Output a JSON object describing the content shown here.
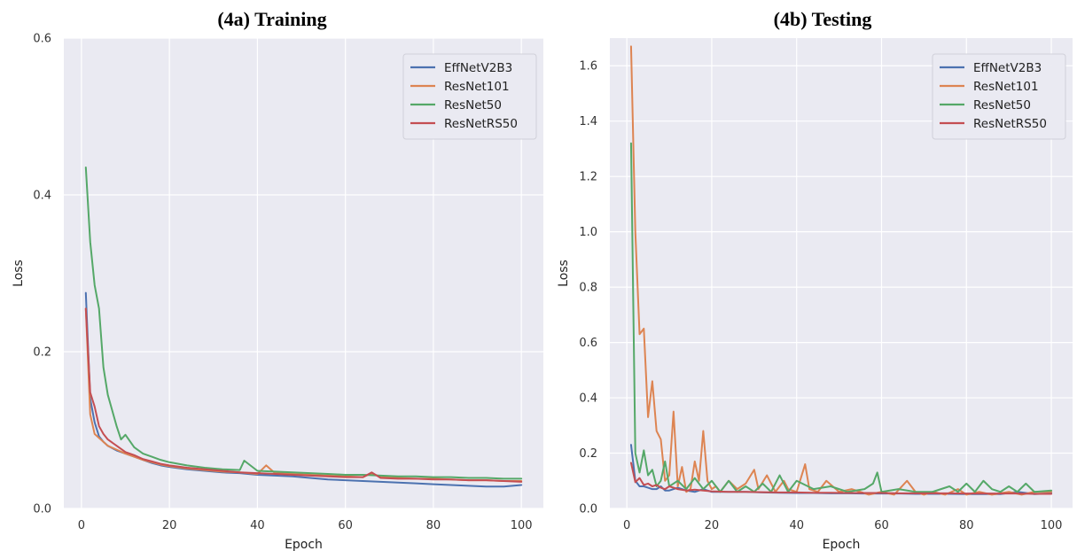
{
  "chart_data": [
    {
      "type": "line",
      "title": "(4a) Training",
      "xlabel": "Epoch",
      "ylabel": "Loss",
      "xlim": [
        -4,
        105
      ],
      "ylim": [
        0,
        0.6
      ],
      "xticks": [
        0,
        20,
        40,
        60,
        80,
        100
      ],
      "yticks": [
        0.0,
        0.2,
        0.4,
        0.6
      ],
      "xtick_labels": [
        "0",
        "20",
        "40",
        "60",
        "80",
        "100"
      ],
      "ytick_labels": [
        "0.0",
        "0.2",
        "0.4",
        "0.6"
      ],
      "grid": true,
      "legend_position": "top-right",
      "series": [
        {
          "name": "EffNetV2B3",
          "color": "#4c72b0",
          "x": [
            1,
            2,
            3,
            4,
            5,
            6,
            8,
            10,
            12,
            14,
            16,
            18,
            20,
            24,
            28,
            32,
            36,
            40,
            44,
            48,
            52,
            56,
            60,
            64,
            68,
            72,
            76,
            80,
            84,
            88,
            92,
            96,
            100
          ],
          "y": [
            0.275,
            0.14,
            0.11,
            0.092,
            0.085,
            0.08,
            0.074,
            0.07,
            0.066,
            0.062,
            0.058,
            0.055,
            0.053,
            0.05,
            0.048,
            0.046,
            0.045,
            0.043,
            0.042,
            0.041,
            0.039,
            0.037,
            0.036,
            0.035,
            0.034,
            0.033,
            0.032,
            0.031,
            0.03,
            0.029,
            0.028,
            0.028,
            0.03
          ]
        },
        {
          "name": "ResNet101",
          "color": "#dd8452",
          "x": [
            1,
            2,
            3,
            4,
            5,
            6,
            8,
            10,
            12,
            14,
            16,
            18,
            20,
            24,
            28,
            32,
            36,
            40,
            42,
            44,
            48,
            52,
            56,
            60,
            64,
            66,
            68,
            72,
            76,
            80,
            84,
            88,
            92,
            96,
            100
          ],
          "y": [
            0.255,
            0.12,
            0.095,
            0.09,
            0.085,
            0.08,
            0.075,
            0.07,
            0.066,
            0.062,
            0.059,
            0.056,
            0.054,
            0.051,
            0.049,
            0.047,
            0.046,
            0.044,
            0.055,
            0.045,
            0.044,
            0.043,
            0.042,
            0.041,
            0.04,
            0.045,
            0.04,
            0.039,
            0.038,
            0.038,
            0.037,
            0.036,
            0.036,
            0.035,
            0.035
          ]
        },
        {
          "name": "ResNet50",
          "color": "#55a868",
          "x": [
            1,
            2,
            3,
            4,
            5,
            6,
            7,
            8,
            9,
            10,
            12,
            14,
            16,
            18,
            20,
            24,
            28,
            32,
            36,
            37,
            40,
            44,
            48,
            52,
            56,
            60,
            64,
            68,
            72,
            76,
            80,
            84,
            88,
            92,
            96,
            100
          ],
          "y": [
            0.435,
            0.34,
            0.285,
            0.255,
            0.18,
            0.145,
            0.125,
            0.105,
            0.088,
            0.094,
            0.078,
            0.07,
            0.066,
            0.062,
            0.059,
            0.055,
            0.052,
            0.05,
            0.049,
            0.061,
            0.048,
            0.047,
            0.046,
            0.045,
            0.044,
            0.043,
            0.043,
            0.042,
            0.041,
            0.041,
            0.04,
            0.04,
            0.039,
            0.039,
            0.038,
            0.038
          ]
        },
        {
          "name": "ResNetRS50",
          "color": "#c44e52",
          "x": [
            1,
            2,
            3,
            4,
            5,
            6,
            8,
            10,
            12,
            14,
            16,
            18,
            20,
            24,
            28,
            32,
            36,
            40,
            44,
            48,
            52,
            56,
            60,
            64,
            66,
            68,
            72,
            76,
            80,
            84,
            88,
            92,
            96,
            100
          ],
          "y": [
            0.255,
            0.148,
            0.13,
            0.105,
            0.095,
            0.088,
            0.08,
            0.072,
            0.068,
            0.063,
            0.06,
            0.057,
            0.055,
            0.052,
            0.05,
            0.048,
            0.046,
            0.045,
            0.044,
            0.043,
            0.042,
            0.041,
            0.04,
            0.04,
            0.046,
            0.039,
            0.038,
            0.038,
            0.037,
            0.037,
            0.036,
            0.036,
            0.035,
            0.034
          ]
        }
      ]
    },
    {
      "type": "line",
      "title": "(4b) Testing",
      "xlabel": "Epoch",
      "ylabel": "Loss",
      "xlim": [
        -4,
        105
      ],
      "ylim": [
        0,
        1.7
      ],
      "xticks": [
        0,
        20,
        40,
        60,
        80,
        100
      ],
      "yticks": [
        0.0,
        0.2,
        0.4,
        0.6,
        0.8,
        1.0,
        1.2,
        1.4,
        1.6
      ],
      "xtick_labels": [
        "0",
        "20",
        "40",
        "60",
        "80",
        "100"
      ],
      "ytick_labels": [
        "0.0",
        "0.2",
        "0.4",
        "0.6",
        "0.8",
        "1.0",
        "1.2",
        "1.4",
        "1.6"
      ],
      "grid": true,
      "legend_position": "top-right",
      "series": [
        {
          "name": "EffNetV2B3",
          "color": "#4c72b0",
          "x": [
            1,
            2,
            3,
            4,
            5,
            6,
            7,
            8,
            9,
            10,
            12,
            14,
            16,
            18,
            20,
            24,
            28,
            32,
            36,
            40,
            44,
            48,
            52,
            56,
            60,
            64,
            68,
            72,
            76,
            80,
            84,
            88,
            92,
            96,
            100
          ],
          "y": [
            0.23,
            0.1,
            0.08,
            0.08,
            0.075,
            0.07,
            0.07,
            0.08,
            0.065,
            0.065,
            0.075,
            0.065,
            0.06,
            0.07,
            0.06,
            0.06,
            0.06,
            0.058,
            0.057,
            0.056,
            0.056,
            0.055,
            0.055,
            0.054,
            0.054,
            0.054,
            0.053,
            0.053,
            0.053,
            0.052,
            0.052,
            0.052,
            0.06,
            0.052,
            0.055
          ]
        },
        {
          "name": "ResNet101",
          "color": "#dd8452",
          "x": [
            1,
            2,
            3,
            4,
            5,
            6,
            7,
            8,
            9,
            10,
            11,
            12,
            13,
            14,
            15,
            16,
            17,
            18,
            19,
            20,
            21,
            22,
            24,
            26,
            28,
            30,
            31,
            33,
            35,
            37,
            38,
            40,
            42,
            43,
            45,
            47,
            50,
            53,
            55,
            57,
            60,
            63,
            66,
            68,
            70,
            72,
            75,
            78,
            80,
            83,
            86,
            90,
            93,
            96,
            100
          ],
          "y": [
            1.67,
            1.0,
            0.63,
            0.65,
            0.33,
            0.46,
            0.28,
            0.25,
            0.1,
            0.12,
            0.35,
            0.08,
            0.15,
            0.06,
            0.07,
            0.17,
            0.1,
            0.28,
            0.1,
            0.07,
            0.08,
            0.06,
            0.1,
            0.07,
            0.09,
            0.14,
            0.07,
            0.12,
            0.06,
            0.1,
            0.07,
            0.06,
            0.16,
            0.07,
            0.06,
            0.1,
            0.06,
            0.07,
            0.06,
            0.05,
            0.06,
            0.05,
            0.1,
            0.06,
            0.05,
            0.06,
            0.05,
            0.07,
            0.05,
            0.06,
            0.05,
            0.06,
            0.05,
            0.06,
            0.06
          ]
        },
        {
          "name": "ResNet50",
          "color": "#55a868",
          "x": [
            1,
            2,
            3,
            4,
            5,
            6,
            7,
            8,
            9,
            10,
            12,
            14,
            16,
            18,
            20,
            22,
            24,
            26,
            28,
            30,
            32,
            34,
            36,
            38,
            40,
            44,
            48,
            52,
            56,
            58,
            59,
            60,
            64,
            68,
            72,
            76,
            78,
            80,
            82,
            84,
            86,
            88,
            90,
            92,
            94,
            96,
            100
          ],
          "y": [
            1.32,
            0.2,
            0.13,
            0.21,
            0.12,
            0.14,
            0.08,
            0.1,
            0.17,
            0.08,
            0.1,
            0.07,
            0.11,
            0.07,
            0.1,
            0.06,
            0.1,
            0.06,
            0.08,
            0.06,
            0.09,
            0.06,
            0.12,
            0.06,
            0.1,
            0.07,
            0.08,
            0.06,
            0.07,
            0.09,
            0.13,
            0.06,
            0.07,
            0.06,
            0.06,
            0.08,
            0.06,
            0.09,
            0.06,
            0.1,
            0.07,
            0.06,
            0.08,
            0.06,
            0.09,
            0.06,
            0.065
          ]
        },
        {
          "name": "ResNetRS50",
          "color": "#c44e52",
          "x": [
            1,
            2,
            3,
            4,
            5,
            6,
            7,
            8,
            9,
            10,
            12,
            14,
            16,
            18,
            20,
            24,
            28,
            32,
            36,
            40,
            44,
            48,
            52,
            56,
            60,
            64,
            68,
            72,
            76,
            80,
            84,
            88,
            92,
            96,
            100
          ],
          "y": [
            0.165,
            0.095,
            0.11,
            0.085,
            0.09,
            0.08,
            0.085,
            0.075,
            0.07,
            0.08,
            0.07,
            0.065,
            0.068,
            0.065,
            0.062,
            0.06,
            0.06,
            0.059,
            0.058,
            0.058,
            0.057,
            0.057,
            0.056,
            0.056,
            0.056,
            0.055,
            0.055,
            0.055,
            0.055,
            0.054,
            0.054,
            0.054,
            0.054,
            0.053,
            0.053
          ]
        }
      ]
    }
  ]
}
